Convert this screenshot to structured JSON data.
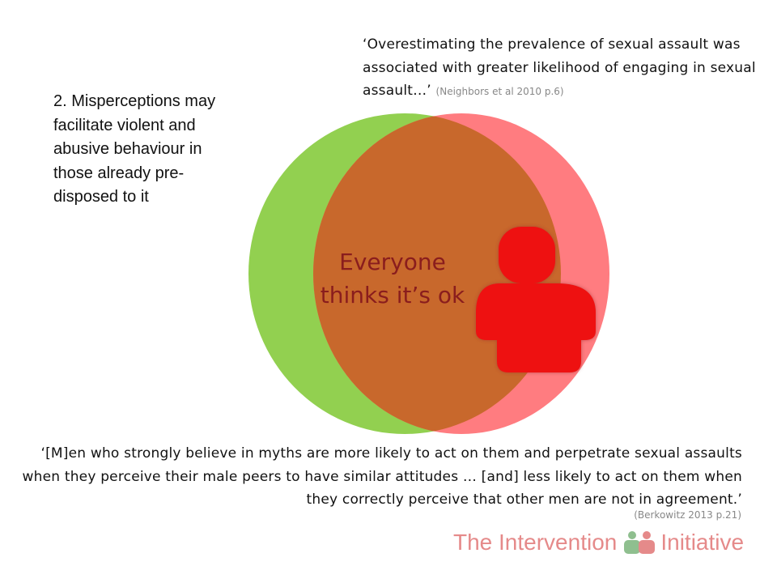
{
  "slide": {
    "point": "2. Misperceptions may facilitate violent and abusive behaviour in those already pre-disposed to it",
    "quote_top": {
      "text": "‘Overestimating the prevalence of sexual assault was associated with greater likelihood of engaging in sexual assault…’",
      "citation": "(Neighbors et al 2010 p.6)"
    },
    "center_label": "Everyone thinks it’s ok",
    "quote_bottom": {
      "text": "‘[M]en who strongly believe in myths are more likely to act on them and perpetrate sexual assaults when they perceive their male peers to have similar attitudes … [and] less likely to act on them when they correctly perceive that other men are not in agreement.’",
      "citation": "(Berkowitz 2013 p.21)"
    },
    "logo": {
      "left_text": "The Intervention",
      "right_text": "Initiative",
      "icon": "two-people-icon"
    },
    "colors": {
      "green_circle": "#92d050",
      "red_circle": "#ff7c80",
      "overlap": "#c8682c",
      "person": "#ee1111",
      "label": "#8a1d1d",
      "logo_text": "#e58a8a"
    }
  }
}
